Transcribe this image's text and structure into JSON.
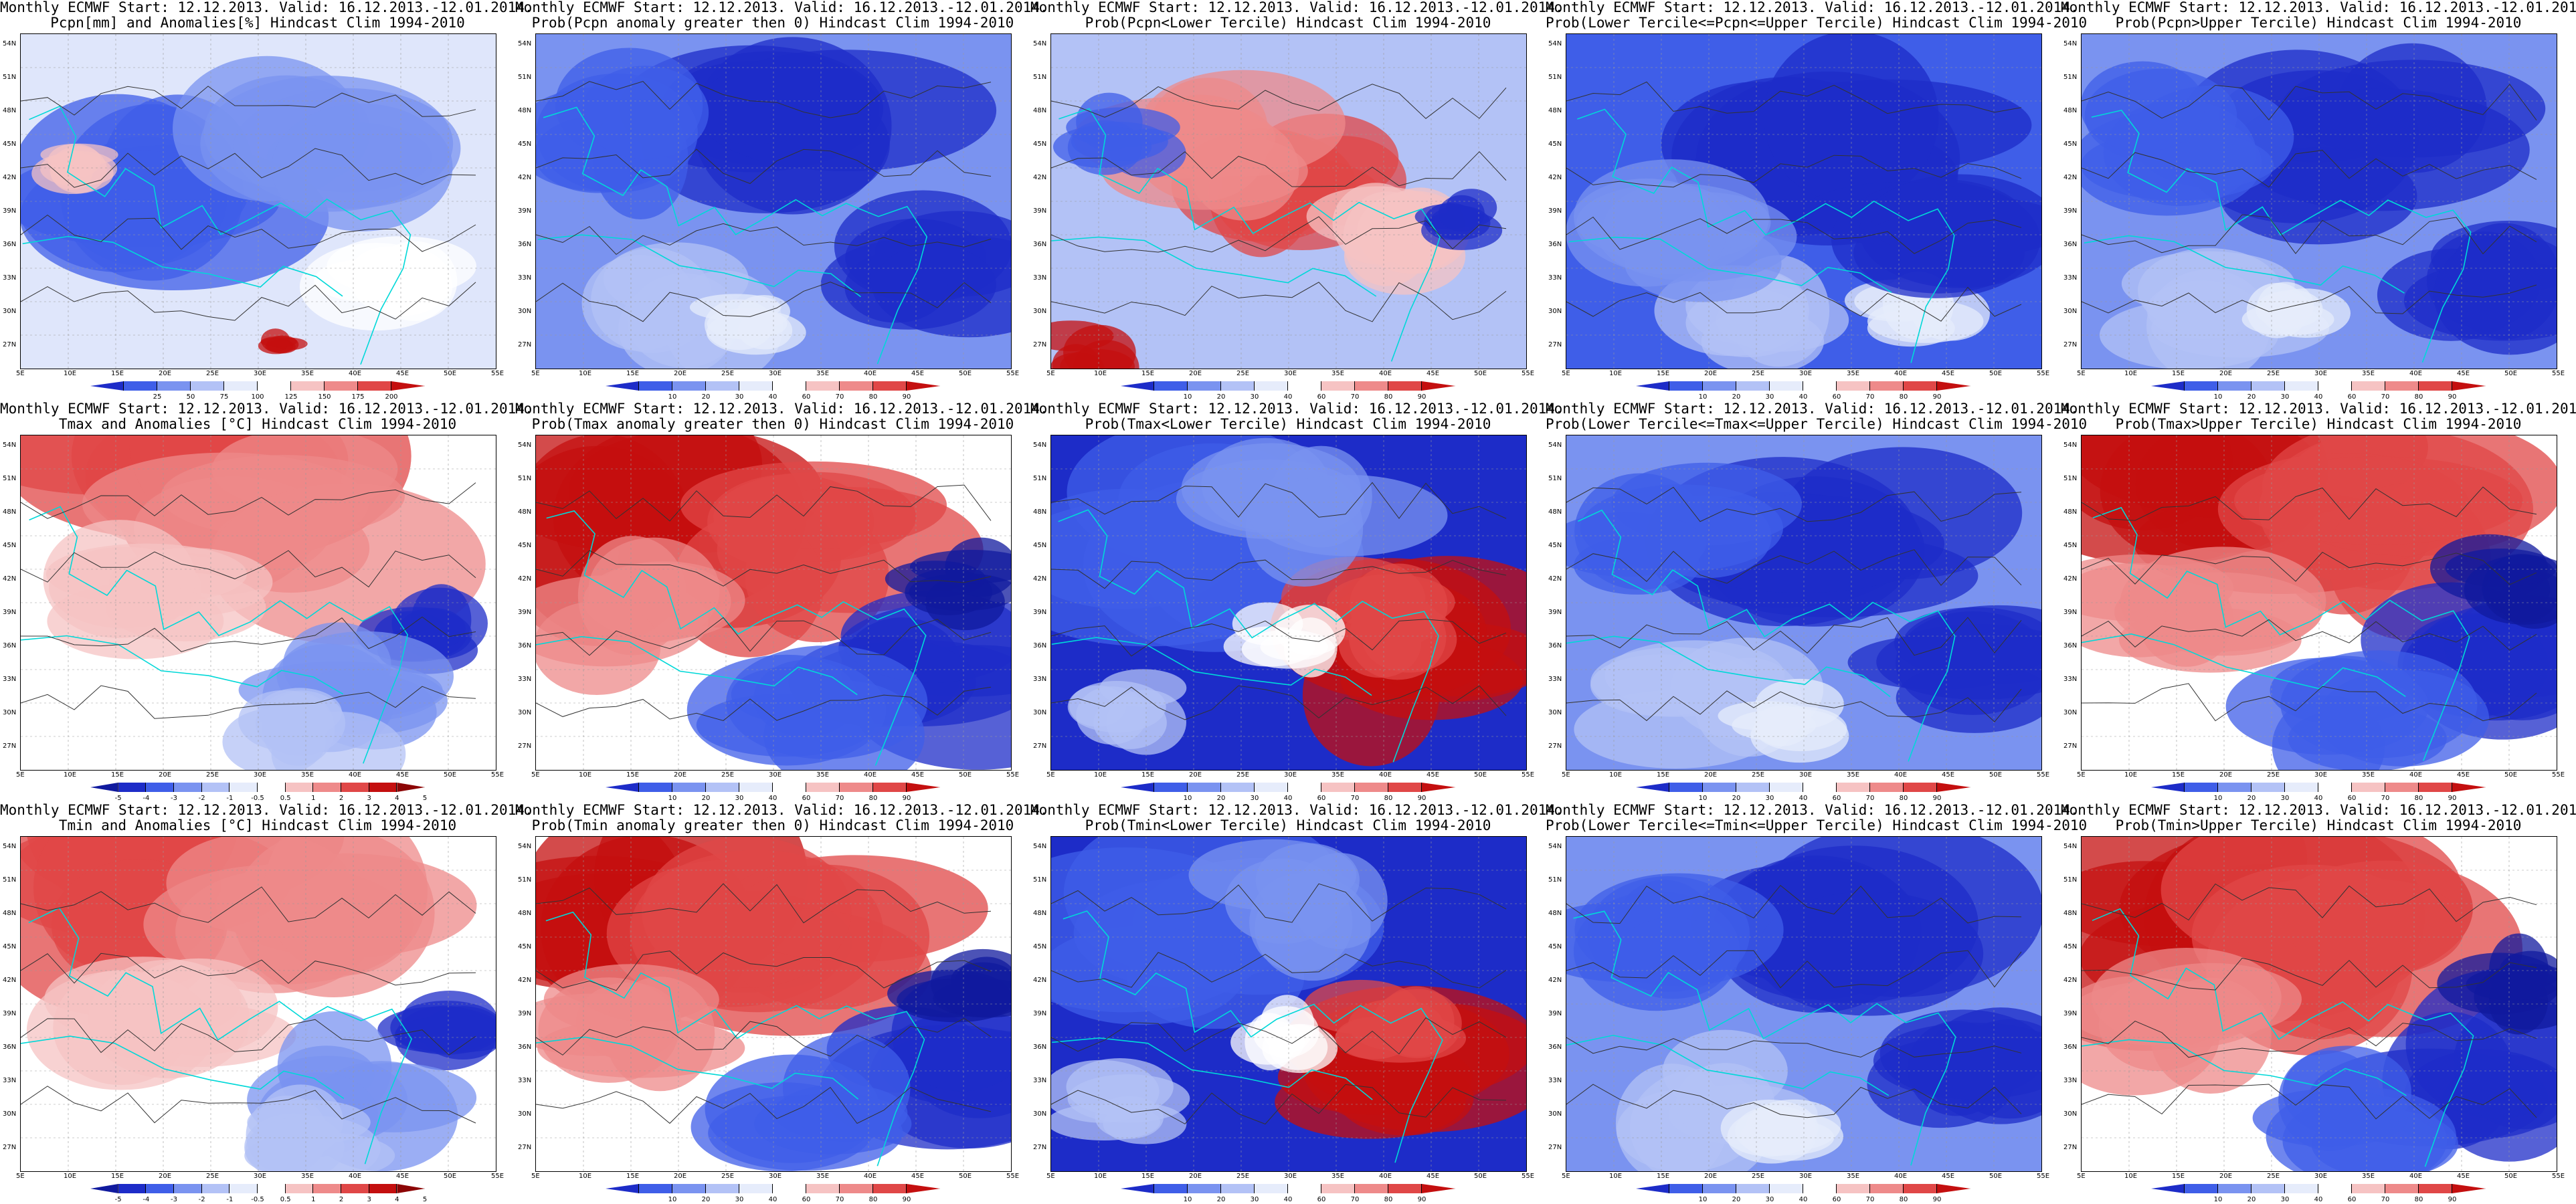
{
  "panels": [
    {
      "line1": "Monthly ECMWF Start: 12.12.2013. Valid: 16.12.2013.-12.01.2014.",
      "line2": "Pcpn[mm] and Anomalies[%] Hindcast Clim 1994-2010",
      "theme": "pcpn-anom",
      "cbar": "pcpn"
    },
    {
      "line1": "Monthly ECMWF Start: 12.12.2013. Valid: 16.12.2013.-12.01.2014.",
      "line2": "Prob(Pcpn anomaly greater then 0) Hindcast Clim 1994-2010",
      "theme": "blue",
      "cbar": "prob"
    },
    {
      "line1": "Monthly ECMWF Start: 12.12.2013. Valid: 16.12.2013.-12.01.2014.",
      "line2": "Prob(Pcpn<Lower Tercile) Hindcast Clim 1994-2010",
      "theme": "red-mid",
      "cbar": "prob"
    },
    {
      "line1": "Monthly ECMWF Start: 12.12.2013. Valid: 16.12.2013.-12.01.2014.",
      "line2": "Prob(Lower Tercile<=Pcpn<=Upper Tercile) Hindcast Clim 1994-2010",
      "theme": "blue-light",
      "cbar": "prob"
    },
    {
      "line1": "Monthly ECMWF Start: 12.12.2013. Valid: 16.12.2013.-12.01.2014.",
      "line2": "Prob(Pcpn>Upper Tercile) Hindcast Clim 1994-2010",
      "theme": "blue",
      "cbar": "prob"
    },
    {
      "line1": "Monthly ECMWF Start: 12.12.2013. Valid: 16.12.2013.-12.01.2014.",
      "line2": "Tmax and Anomalies [°C] Hindcast Clim 1994-2010",
      "theme": "red-north",
      "cbar": "temp"
    },
    {
      "line1": "Monthly ECMWF Start: 12.12.2013. Valid: 16.12.2013.-12.01.2014.",
      "line2": "Prob(Tmax anomaly greater then 0) Hindcast Clim 1994-2010",
      "theme": "darkred-north",
      "cbar": "prob"
    },
    {
      "line1": "Monthly ECMWF Start: 12.12.2013. Valid: 16.12.2013.-12.01.2014.",
      "line2": "Prob(Tmax<Lower Tercile) Hindcast Clim 1994-2010",
      "theme": "blue-redSE",
      "cbar": "prob"
    },
    {
      "line1": "Monthly ECMWF Start: 12.12.2013. Valid: 16.12.2013.-12.01.2014.",
      "line2": "Prob(Lower Tercile<=Tmax<=Upper Tercile) Hindcast Clim 1994-2010",
      "theme": "blue",
      "cbar": "prob"
    },
    {
      "line1": "Monthly ECMWF Start: 12.12.2013. Valid: 16.12.2013.-12.01.2014.",
      "line2": "Prob(Tmax>Upper Tercile) Hindcast Clim 1994-2010",
      "theme": "darkred-north",
      "cbar": "prob"
    },
    {
      "line1": "Monthly ECMWF Start: 12.12.2013. Valid: 16.12.2013.-12.01.2014.",
      "line2": "Tmin and Anomalies [°C] Hindcast Clim 1994-2010",
      "theme": "red-north",
      "cbar": "temp"
    },
    {
      "line1": "Monthly ECMWF Start: 12.12.2013. Valid: 16.12.2013.-12.01.2014.",
      "line2": "Prob(Tmin anomaly greater then 0) Hindcast Clim 1994-2010",
      "theme": "darkred-north",
      "cbar": "prob"
    },
    {
      "line1": "Monthly ECMWF Start: 12.12.2013. Valid: 16.12.2013.-12.01.2014.",
      "line2": "Prob(Tmin<Lower Tercile) Hindcast Clim 1994-2010",
      "theme": "blue-redSE",
      "cbar": "prob"
    },
    {
      "line1": "Monthly ECMWF Start: 12.12.2013. Valid: 16.12.2013.-12.01.2014.",
      "line2": "Prob(Lower Tercile<=Tmin<=Upper Tercile) Hindcast Clim 1994-2010",
      "theme": "blue",
      "cbar": "prob"
    },
    {
      "line1": "Monthly ECMWF Start: 12.12.2013. Valid: 16.12.2013.-12.01.2014.",
      "line2": "Prob(Tmin>Upper Tercile) Hindcast Clim 1994-2010",
      "theme": "darkred-north",
      "cbar": "prob"
    }
  ],
  "axes": {
    "lat_labels": [
      "54N",
      "51N",
      "48N",
      "45N",
      "42N",
      "39N",
      "36N",
      "33N",
      "30N",
      "27N"
    ],
    "lon_labels": [
      "5E",
      "10E",
      "15E",
      "20E",
      "25E",
      "30E",
      "35E",
      "40E",
      "45E",
      "50E",
      "55E"
    ]
  },
  "colorbars": {
    "pcpn": {
      "labels": [
        "25",
        "50",
        "75",
        "100",
        "125",
        "150",
        "175",
        "200"
      ],
      "colors": [
        "#1d2cc8",
        "#3f5ee8",
        "#7a93f0",
        "#b3c2f6",
        "#e6ecfb",
        "#ffffff",
        "#f6c3c3",
        "#ee8a8a",
        "#e04747",
        "#c40f0f"
      ]
    },
    "prob": {
      "labels": [
        "10",
        "20",
        "30",
        "40",
        "60",
        "70",
        "80",
        "90"
      ],
      "colors": [
        "#1d2cc8",
        "#3f5ee8",
        "#7a93f0",
        "#b3c2f6",
        "#e6ecfb",
        "#ffffff",
        "#f6c3c3",
        "#ee8a8a",
        "#e04747",
        "#c40f0f"
      ]
    },
    "temp": {
      "labels": [
        "-5",
        "-4",
        "-3",
        "-2",
        "-1",
        "-0.5",
        "0.5",
        "1",
        "2",
        "3",
        "4",
        "5"
      ],
      "colors": [
        "#101a9e",
        "#1d2cc8",
        "#3f5ee8",
        "#7a93f0",
        "#b3c2f6",
        "#e6ecfb",
        "#ffffff",
        "#f6c3c3",
        "#ee8a8a",
        "#e04747",
        "#c40f0f",
        "#8c0505"
      ]
    }
  },
  "colors": {
    "coastline": "#00d8d8",
    "contour": "#333333",
    "grid": "#9a9a9a"
  }
}
